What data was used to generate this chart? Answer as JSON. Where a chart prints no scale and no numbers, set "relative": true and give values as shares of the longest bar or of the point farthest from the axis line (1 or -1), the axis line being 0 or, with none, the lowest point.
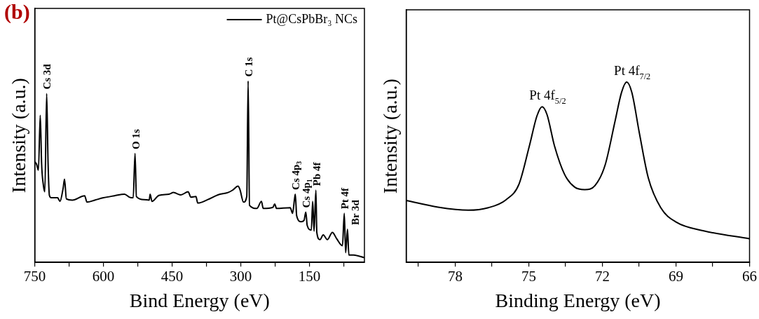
{
  "chart_data": [
    {
      "type": "line",
      "relative": true,
      "xlabel": "Bind Energy (eV)",
      "ylabel": "Intensity (a.u.)",
      "xlim": [
        750,
        30
      ],
      "xticks": [
        750,
        {
          "value": 675,
          "label": null
        },
        600,
        {
          "value": 525,
          "label": null
        },
        450,
        {
          "value": 375,
          "label": null
        },
        300,
        {
          "value": 225,
          "label": null
        },
        150,
        {
          "value": 75,
          "label": null
        }
      ],
      "tick_labels": "x",
      "legend": "top right",
      "series": [
        {
          "name": "Pt@CsPbBr₃ NCs",
          "color": "#000000",
          "x": [
            750,
            746,
            742,
            738,
            735,
            731,
            728,
            724,
            721,
            718,
            714,
            700,
            695,
            688,
            685,
            681,
            668,
            641,
            636,
            619,
            600,
            576,
            554,
            543,
            535,
            531,
            528,
            511,
            500,
            498,
            494,
            479,
            457,
            447,
            431,
            415,
            409,
            398,
            394,
            372,
            350,
            328,
            318,
            306,
            302,
            294,
            287,
            284,
            281,
            265,
            255,
            251,
            230,
            226,
            222,
            192,
            187,
            183,
            181,
            178,
            168,
            162,
            158,
            155,
            146,
            143,
            140,
            136,
            134,
            127,
            120,
            111,
            100,
            91,
            78,
            74,
            71,
            67,
            64,
            54,
            30
          ],
          "values": [
            0.554,
            0.541,
            0.508,
            0.811,
            0.541,
            0.422,
            0.389,
            0.93,
            0.554,
            0.369,
            0.356,
            0.356,
            0.336,
            0.409,
            0.459,
            0.35,
            0.343,
            0.367,
            0.332,
            0.343,
            0.356,
            0.367,
            0.376,
            0.359,
            0.356,
            0.6,
            0.363,
            0.346,
            0.343,
            0.376,
            0.336,
            0.369,
            0.376,
            0.385,
            0.372,
            0.389,
            0.359,
            0.363,
            0.327,
            0.346,
            0.372,
            0.385,
            0.398,
            0.42,
            0.402,
            0.332,
            0.363,
            1.0,
            0.314,
            0.297,
            0.336,
            0.297,
            0.303,
            0.322,
            0.297,
            0.301,
            0.27,
            0.343,
            0.376,
            0.257,
            0.224,
            0.231,
            0.277,
            0.204,
            0.178,
            0.336,
            0.172,
            0.398,
            0.165,
            0.125,
            0.152,
            0.125,
            0.165,
            0.132,
            0.092,
            0.27,
            0.053,
            0.182,
            0.04,
            0.04,
            0.026
          ]
        }
      ],
      "annotations": [
        "(b)",
        {
          "text": "Cs 3d",
          "x": 724,
          "y": 0.93
        },
        {
          "text": "O 1s",
          "x": 531,
          "y": 0.6
        },
        {
          "text": "C 1s",
          "x": 284,
          "y": 1.0
        },
        {
          "text": "Cs 4p$_{3}$",
          "x": 181,
          "y": 0.376
        },
        {
          "text": "Cs 4p$_{1}$",
          "x": 158,
          "y": 0.277
        },
        {
          "text": "Pb 4f",
          "x": 136,
          "y": 0.398
        },
        {
          "text": "Pt 4f",
          "x": 74,
          "y": 0.27
        },
        {
          "text": "Br 3d",
          "x": 67,
          "y": 0.182
        }
      ]
    },
    {
      "type": "line",
      "relative": true,
      "xlabel": "Binding Energy (eV)",
      "ylabel": "Intensity (a.u.)",
      "xlim": [
        80,
        66
      ],
      "xticks": [
        {
          "value": 79.5,
          "label": null
        },
        78,
        {
          "value": 76.5,
          "label": null
        },
        75,
        {
          "value": 73.5,
          "label": null
        },
        72,
        {
          "value": 70.5,
          "label": null
        },
        69,
        {
          "value": 67.5,
          "label": null
        },
        66
      ],
      "tick_labels": "x",
      "series": [
        {
          "color": "#000000",
          "x": [
            80,
            78.7,
            77.47,
            76.65,
            75.93,
            75.4,
            74.98,
            74.67,
            74.46,
            74.26,
            73.95,
            73.54,
            73.13,
            72.72,
            72.3,
            71.89,
            71.48,
            71.22,
            71.01,
            70.8,
            70.49,
            70.13,
            69.62,
            69.0,
            67.87,
            66
          ],
          "values": [
            0.343,
            0.306,
            0.289,
            0.303,
            0.347,
            0.434,
            0.644,
            0.811,
            0.863,
            0.82,
            0.644,
            0.487,
            0.417,
            0.403,
            0.426,
            0.539,
            0.785,
            0.942,
            1.0,
            0.942,
            0.715,
            0.469,
            0.303,
            0.224,
            0.175,
            0.131
          ]
        }
      ],
      "annotations": [
        {
          "text": "Pt 4f$_{5/2}$",
          "x": 74.46,
          "y": 0.863
        },
        {
          "text": "Pt 4f$_{7/2}$",
          "x": 71.01,
          "y": 1.0
        }
      ]
    }
  ]
}
